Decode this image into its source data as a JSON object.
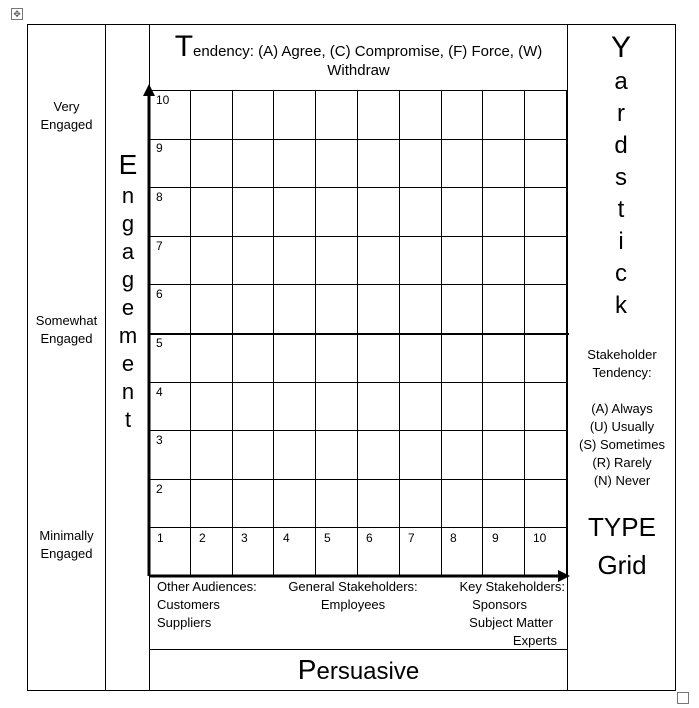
{
  "engagement_levels": {
    "very": [
      "Very",
      "Engaged"
    ],
    "somewhat": [
      "Somewhat",
      "Engaged"
    ],
    "minimally": [
      "Minimally",
      "Engaged"
    ]
  },
  "engagement_word": [
    "E",
    "n",
    "g",
    "a",
    "g",
    "e",
    "m",
    "e",
    "n",
    "t"
  ],
  "title": {
    "cap": "T",
    "rest": "endency: (A) Agree, (C) Compromise, (F) Force, (W)",
    "line2": "Withdraw"
  },
  "y_axis": [
    "10",
    "9",
    "8",
    "7",
    "6",
    "5",
    "4",
    "3",
    "2"
  ],
  "x_axis": [
    "1",
    "2",
    "3",
    "4",
    "5",
    "6",
    "7",
    "8",
    "9",
    "10"
  ],
  "yardstick": [
    "Y",
    "a",
    "r",
    "d",
    "s",
    "t",
    "i",
    "c",
    "k"
  ],
  "tendency_heading": [
    "Stakeholder",
    "Tendency:"
  ],
  "tendency_items": [
    "(A)  Always",
    "(U) Usually",
    "(S) Sometimes",
    "(R) Rarely",
    "(N) Never"
  ],
  "type_grid": [
    "TYPE",
    "Grid"
  ],
  "audiences": {
    "other": [
      "Other Audiences:",
      "Customers",
      "Suppliers"
    ],
    "general": [
      "General Stakeholders:",
      "Employees"
    ],
    "key": [
      "Key Stakeholders:",
      "Sponsors",
      "Subject Matter",
      "Experts"
    ]
  },
  "footer": {
    "cap": "P",
    "rest": "ersuasive"
  }
}
